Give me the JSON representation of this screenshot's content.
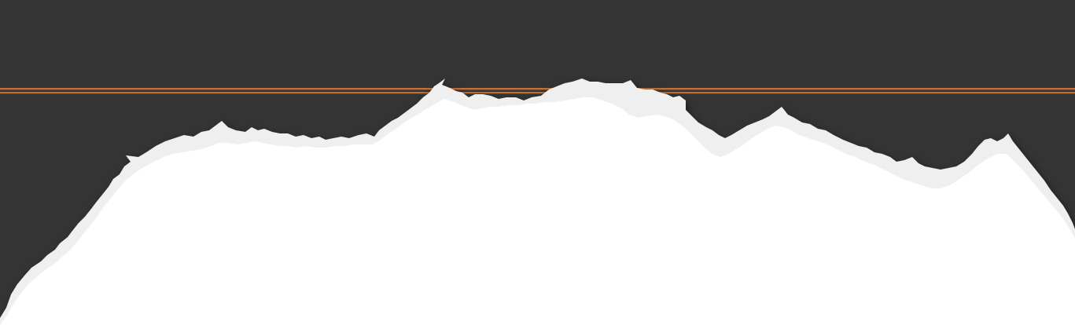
{
  "scene": {
    "description_colors": {
      "dark_background": "#343434",
      "stripe": "#c9773a",
      "stripe_dark": "#8a4f26",
      "torn_edge": "#efefef",
      "paper": "#ffffff",
      "shadow": "#000000"
    },
    "elements": {
      "background": "dark-panel",
      "stripe": "copper-double-line",
      "edge": "torn-paper-edge"
    }
  }
}
